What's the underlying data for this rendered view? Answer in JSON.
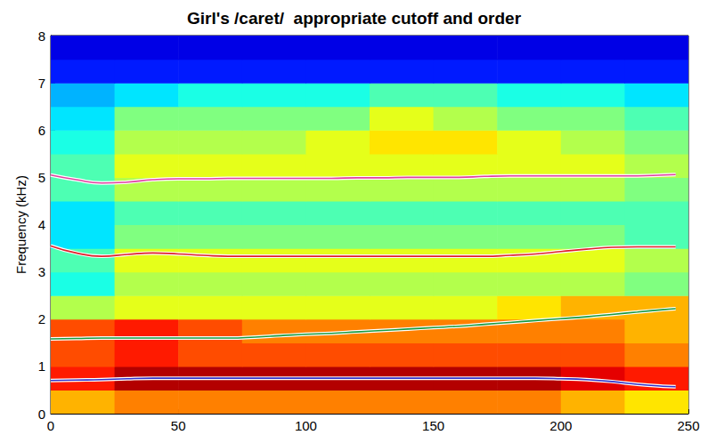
{
  "chart_data": {
    "type": "spectrogram",
    "title": "Girl's /caret/  appropriate cutoff and order",
    "y_label": "Frequency (kHz)",
    "xlim": [
      0,
      250
    ],
    "xticks": [
      0,
      50,
      100,
      150,
      200,
      250
    ],
    "ylim": [
      0,
      8
    ],
    "yticks": [
      0,
      1,
      2,
      3,
      4,
      5,
      6,
      7,
      8
    ],
    "grid": false,
    "cell_x": [
      0,
      25,
      50,
      75,
      100,
      125,
      150,
      175,
      200,
      225,
      250
    ],
    "cell_y": [
      0,
      0.5,
      1,
      1.5,
      2,
      2.5,
      3,
      3.5,
      4,
      4.5,
      5,
      5.5,
      6,
      6.5,
      7,
      7.5,
      8
    ],
    "zlim": [
      0,
      10
    ],
    "z": [
      [
        7,
        7.5,
        7.5,
        7.5,
        7.5,
        7.5,
        7.5,
        7.5,
        7,
        6.5
      ],
      [
        8.5,
        9.5,
        9.5,
        9.5,
        9.5,
        9.5,
        9.5,
        9.5,
        9,
        8.5
      ],
      [
        8,
        8.5,
        8,
        8,
        8,
        8,
        8,
        8,
        8,
        7.5
      ],
      [
        8,
        8.5,
        8,
        7.5,
        7.5,
        7.5,
        7.5,
        7.5,
        7.5,
        7
      ],
      [
        5.5,
        6,
        6,
        6,
        6,
        6,
        6,
        6.5,
        7,
        7
      ],
      [
        4,
        5.5,
        5.5,
        5.5,
        5.5,
        5.5,
        5.5,
        5.5,
        5.5,
        5
      ],
      [
        4.5,
        6,
        6,
        6,
        6,
        6,
        6,
        6,
        6,
        5.5
      ],
      [
        3.5,
        5,
        5,
        5,
        5,
        5,
        5,
        5,
        5,
        4.5
      ],
      [
        3.5,
        4.5,
        4.5,
        4.5,
        4.5,
        4.5,
        4.5,
        4.5,
        4.5,
        4.5
      ],
      [
        4.5,
        5.5,
        5.5,
        5.5,
        5.5,
        5.5,
        5.5,
        5.5,
        5.5,
        5
      ],
      [
        4.5,
        6,
        6,
        6,
        6,
        6,
        6,
        6,
        6,
        5.5
      ],
      [
        4,
        5.5,
        5.5,
        5.5,
        6,
        6.5,
        6.5,
        6,
        5.5,
        5
      ],
      [
        3.5,
        5,
        5,
        5,
        5,
        6,
        5.5,
        5,
        5,
        4.5
      ],
      [
        3,
        3.5,
        4,
        4,
        4,
        4.5,
        4.5,
        4,
        4,
        3.5
      ],
      [
        1.5,
        1.5,
        1.5,
        1.5,
        1.5,
        1.5,
        1.5,
        1.5,
        1.5,
        1.5
      ],
      [
        1,
        1,
        1,
        1,
        1,
        1,
        1,
        1,
        1,
        1
      ]
    ],
    "x": [
      0,
      10,
      20,
      30,
      40,
      50,
      60,
      70,
      80,
      90,
      100,
      110,
      120,
      130,
      140,
      150,
      160,
      170,
      180,
      190,
      200,
      210,
      220,
      230,
      240,
      245
    ],
    "series": [
      {
        "color": "#3232c8",
        "values": [
          0.7,
          0.71,
          0.72,
          0.74,
          0.75,
          0.75,
          0.75,
          0.75,
          0.75,
          0.75,
          0.75,
          0.75,
          0.75,
          0.75,
          0.75,
          0.75,
          0.75,
          0.75,
          0.75,
          0.75,
          0.74,
          0.72,
          0.68,
          0.62,
          0.58,
          0.57
        ]
      },
      {
        "color": "#1a9a40",
        "values": [
          1.58,
          1.59,
          1.6,
          1.6,
          1.6,
          1.6,
          1.6,
          1.6,
          1.62,
          1.65,
          1.68,
          1.7,
          1.73,
          1.76,
          1.79,
          1.82,
          1.85,
          1.89,
          1.93,
          1.97,
          2.01,
          2.05,
          2.1,
          2.15,
          2.2,
          2.22
        ]
      },
      {
        "color": "#e0202a",
        "values": [
          3.55,
          3.4,
          3.33,
          3.37,
          3.4,
          3.38,
          3.35,
          3.33,
          3.33,
          3.33,
          3.33,
          3.33,
          3.33,
          3.33,
          3.33,
          3.33,
          3.33,
          3.33,
          3.35,
          3.38,
          3.43,
          3.48,
          3.52,
          3.53,
          3.53,
          3.53
        ]
      },
      {
        "color": "#e040a0",
        "values": [
          5.05,
          4.95,
          4.88,
          4.9,
          4.95,
          4.97,
          4.97,
          4.98,
          4.98,
          4.98,
          4.98,
          4.98,
          4.99,
          4.99,
          5.0,
          5.0,
          5.0,
          5.02,
          5.03,
          5.03,
          5.03,
          5.03,
          5.03,
          5.03,
          5.05,
          5.06
        ]
      }
    ]
  }
}
